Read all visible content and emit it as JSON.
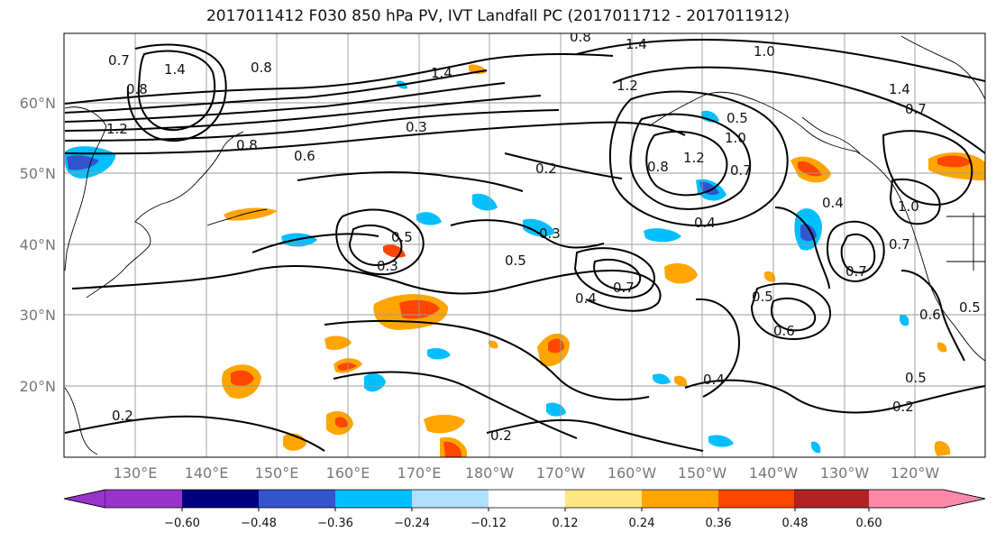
{
  "title": "2017011412 F030 850 hPa PV, IVT Landfall PC (2017011712 - 2017011912)",
  "lat_labels": [
    "60°N",
    "50°N",
    "40°N",
    "30°N",
    "20°N"
  ],
  "lon_labels": [
    "130°E",
    "140°E",
    "150°E",
    "160°E",
    "170°E",
    "180°W",
    "170°W",
    "160°W",
    "150°W",
    "140°W",
    "130°W",
    "120°W"
  ],
  "colorbar": {
    "colors": [
      "#9933cc",
      "#000080",
      "#3355cc",
      "#00bfff",
      "#b0e0ff",
      "#ffffff",
      "#ffe680",
      "#ffa500",
      "#ff4500",
      "#b22222",
      "#ff88aa"
    ],
    "tick_labels": [
      "−0.60",
      "−0.48",
      "−0.36",
      "−0.24",
      "−0.12",
      "0.12",
      "0.24",
      "0.36",
      "0.48",
      "0.60"
    ]
  },
  "contour_labels": [
    "0.7",
    "1.4",
    "0.8",
    "0.8",
    "1.2",
    "0.8",
    "0.6",
    "0.3",
    "1.4",
    "0.8",
    "1.4",
    "1.2",
    "0.5",
    "1.0",
    "1.0",
    "1.4",
    "0.7",
    "0.2",
    "1.0",
    "0.8",
    "1.2",
    "0.7",
    "0.4",
    "0.4",
    "0.3",
    "0.5",
    "0.5",
    "0.3",
    "0.5",
    "0.4",
    "0.7",
    "0.6",
    "0.7",
    "0.5",
    "0.6",
    "0.7",
    "0.4",
    "0.2",
    "0.5",
    "0.2",
    "0.2"
  ]
}
